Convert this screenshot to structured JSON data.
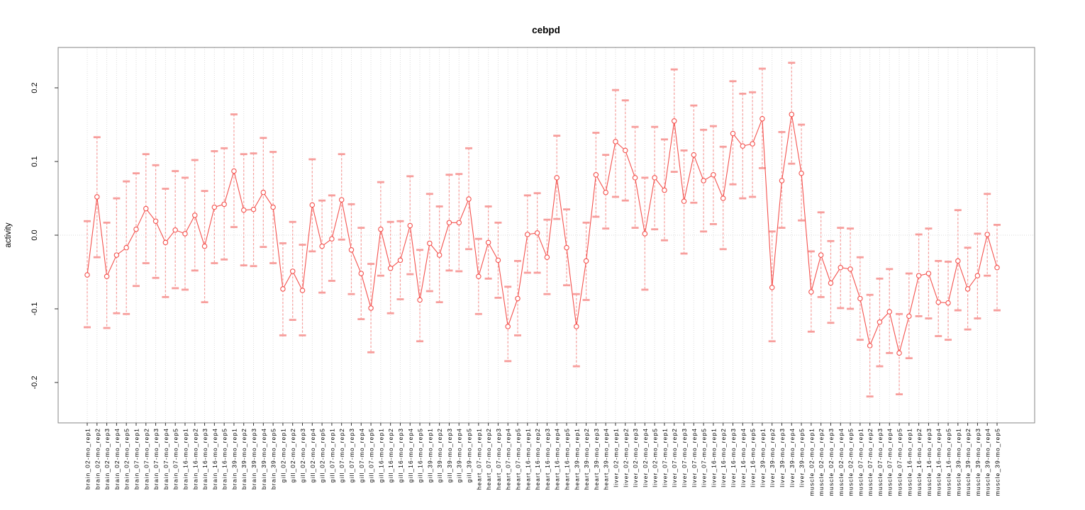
{
  "colors": {
    "series": "#f4524e",
    "errorbar": "#f79e9c",
    "grid": "#dcdcdc",
    "zero_line": "#d9d9d9",
    "border": "#858585",
    "tick": "#333333",
    "text": "#000000",
    "background": "#ffffff"
  },
  "chart_data": {
    "type": "line",
    "title": "cebpd",
    "xlabel": "",
    "ylabel": "activity",
    "ylim": [
      -0.255,
      0.255
    ],
    "y_ticks": [
      -0.2,
      -0.1,
      0.0,
      0.1,
      0.2
    ],
    "y_tick_labels": [
      "-0.2",
      "-0.1",
      "0.0",
      "0.1",
      "0.2"
    ],
    "grid": "dotted vertical gridline at every sample; dotted horizontal line at y=0",
    "legend_position": "none",
    "marker": "open-circle",
    "error_bars": "dashed stem with capped ends",
    "labels": [
      "brain_02-mo_rep1",
      "brain_02-mo_rep2",
      "brain_02-mo_rep3",
      "brain_02-mo_rep4",
      "brain_02-mo_rep5",
      "brain_07-mo_rep1",
      "brain_07-mo_rep2",
      "brain_07-mo_rep3",
      "brain_07-mo_rep4",
      "brain_07-mo_rep5",
      "brain_16-mo_rep1",
      "brain_16-mo_rep2",
      "brain_16-mo_rep3",
      "brain_16-mo_rep4",
      "brain_16-mo_rep5",
      "brain_39-mo_rep1",
      "brain_39-mo_rep2",
      "brain_39-mo_rep3",
      "brain_39-mo_rep4",
      "brain_39-mo_rep5",
      "gill_02-mo_rep1",
      "gill_02-mo_rep2",
      "gill_02-mo_rep3",
      "gill_02-mo_rep4",
      "gill_02-mo_rep5",
      "gill_07-mo_rep1",
      "gill_07-mo_rep2",
      "gill_07-mo_rep3",
      "gill_07-mo_rep4",
      "gill_07-mo_rep5",
      "gill_16-mo_rep1",
      "gill_16-mo_rep2",
      "gill_16-mo_rep3",
      "gill_16-mo_rep4",
      "gill_16-mo_rep5",
      "gill_39-mo_rep1",
      "gill_39-mo_rep2",
      "gill_39-mo_rep3",
      "gill_39-mo_rep4",
      "gill_39-mo_rep5",
      "heart_07-mo_rep1",
      "heart_07-mo_rep2",
      "heart_07-mo_rep3",
      "heart_07-mo_rep4",
      "heart_07-mo_rep5",
      "heart_16-mo_rep1",
      "heart_16-mo_rep2",
      "heart_16-mo_rep3",
      "heart_16-mo_rep4",
      "heart_16-mo_rep5",
      "heart_39-mo_rep1",
      "heart_39-mo_rep2",
      "heart_39-mo_rep3",
      "heart_39-mo_rep4",
      "liver_02-mo_rep1",
      "liver_02-mo_rep2",
      "liver_02-mo_rep3",
      "liver_02-mo_rep4",
      "liver_02-mo_rep5",
      "liver_07-mo_rep1",
      "liver_07-mo_rep2",
      "liver_07-mo_rep3",
      "liver_07-mo_rep4",
      "liver_07-mo_rep5",
      "liver_16-mo_rep1",
      "liver_16-mo_rep2",
      "liver_16-mo_rep3",
      "liver_16-mo_rep4",
      "liver_16-mo_rep5",
      "liver_39-mo_rep1",
      "liver_39-mo_rep2",
      "liver_39-mo_rep3",
      "liver_39-mo_rep4",
      "liver_39-mo_rep5",
      "muscle_02-mo_rep1",
      "muscle_02-mo_rep2",
      "muscle_02-mo_rep3",
      "muscle_02-mo_rep4",
      "muscle_02-mo_rep5",
      "muscle_07-mo_rep1",
      "muscle_07-mo_rep2",
      "muscle_07-mo_rep3",
      "muscle_07-mo_rep4",
      "muscle_07-mo_rep5",
      "muscle_16-mo_rep1",
      "muscle_16-mo_rep2",
      "muscle_16-mo_rep3",
      "muscle_16-mo_rep4",
      "muscle_16-mo_rep5",
      "muscle_39-mo_rep1",
      "muscle_39-mo_rep2",
      "muscle_39-mo_rep3",
      "muscle_39-mo_rep4",
      "muscle_39-mo_rep5"
    ],
    "values": [
      -0.054,
      0.052,
      -0.056,
      -0.027,
      -0.017,
      0.008,
      0.036,
      0.019,
      -0.01,
      0.007,
      0.002,
      0.027,
      -0.015,
      0.038,
      0.042,
      0.087,
      0.034,
      0.035,
      0.058,
      0.038,
      -0.073,
      -0.049,
      -0.075,
      0.041,
      -0.015,
      -0.005,
      0.048,
      -0.02,
      -0.052,
      -0.099,
      0.008,
      -0.045,
      -0.034,
      0.013,
      -0.088,
      -0.011,
      -0.027,
      0.017,
      0.017,
      0.049,
      -0.056,
      -0.01,
      -0.034,
      -0.124,
      -0.086,
      0.001,
      0.003,
      -0.03,
      0.078,
      -0.017,
      -0.124,
      -0.035,
      0.082,
      0.058,
      0.127,
      0.115,
      0.078,
      0.002,
      0.078,
      0.061,
      0.155,
      0.046,
      0.109,
      0.074,
      0.082,
      0.05,
      0.138,
      0.121,
      0.124,
      0.158,
      -0.071,
      0.074,
      0.164,
      0.084,
      -0.077,
      -0.027,
      -0.065,
      -0.044,
      -0.046,
      -0.086,
      -0.15,
      -0.118,
      -0.104,
      -0.16,
      -0.11,
      -0.055,
      -0.052,
      -0.091,
      -0.092,
      -0.035,
      -0.073,
      -0.055,
      0.001,
      -0.044
    ],
    "upper": [
      0.019,
      0.133,
      0.017,
      0.05,
      0.073,
      0.084,
      0.11,
      0.095,
      0.063,
      0.087,
      0.078,
      0.102,
      0.06,
      0.114,
      0.118,
      0.164,
      0.11,
      0.111,
      0.132,
      0.113,
      -0.011,
      0.018,
      -0.013,
      0.103,
      0.047,
      0.054,
      0.11,
      0.042,
      0.01,
      -0.039,
      0.072,
      0.018,
      0.019,
      0.08,
      -0.02,
      0.056,
      0.039,
      0.082,
      0.083,
      0.118,
      -0.005,
      0.039,
      0.017,
      -0.07,
      -0.035,
      0.054,
      0.057,
      0.021,
      0.135,
      0.035,
      -0.08,
      0.017,
      0.139,
      0.109,
      0.197,
      0.183,
      0.147,
      0.078,
      0.147,
      0.13,
      0.225,
      0.115,
      0.176,
      0.143,
      0.148,
      0.12,
      0.209,
      0.192,
      0.194,
      0.226,
      0.005,
      0.14,
      0.234,
      0.15,
      -0.022,
      0.031,
      -0.008,
      0.01,
      0.009,
      -0.03,
      -0.081,
      -0.059,
      -0.046,
      -0.107,
      -0.052,
      0.001,
      0.009,
      -0.035,
      -0.036,
      0.034,
      -0.017,
      0.002,
      0.056,
      0.014
    ],
    "lower": [
      -0.125,
      -0.03,
      -0.126,
      -0.106,
      -0.107,
      -0.069,
      -0.038,
      -0.058,
      -0.084,
      -0.072,
      -0.074,
      -0.048,
      -0.091,
      -0.038,
      -0.033,
      0.011,
      -0.041,
      -0.042,
      -0.016,
      -0.038,
      -0.136,
      -0.115,
      -0.136,
      -0.022,
      -0.078,
      -0.062,
      -0.006,
      -0.08,
      -0.114,
      -0.159,
      -0.055,
      -0.106,
      -0.087,
      -0.053,
      -0.144,
      -0.076,
      -0.091,
      -0.048,
      -0.049,
      -0.019,
      -0.107,
      -0.059,
      -0.085,
      -0.171,
      -0.136,
      -0.051,
      -0.051,
      -0.08,
      0.022,
      -0.068,
      -0.178,
      -0.088,
      0.025,
      0.009,
      0.052,
      0.047,
      0.01,
      -0.074,
      0.008,
      -0.007,
      0.086,
      -0.025,
      0.044,
      0.005,
      0.015,
      -0.019,
      0.069,
      0.05,
      0.052,
      0.091,
      -0.144,
      0.01,
      0.097,
      0.02,
      -0.131,
      -0.084,
      -0.119,
      -0.099,
      -0.1,
      -0.142,
      -0.219,
      -0.178,
      -0.16,
      -0.216,
      -0.167,
      -0.11,
      -0.113,
      -0.137,
      -0.142,
      -0.102,
      -0.128,
      -0.113,
      -0.055,
      -0.102
    ]
  }
}
